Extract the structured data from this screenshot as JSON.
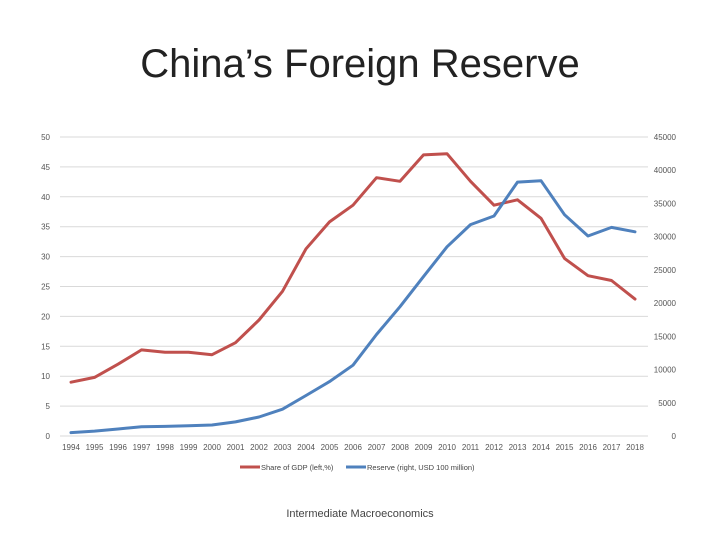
{
  "slide": {
    "title": "China’s Foreign Reserve",
    "footer": "Intermediate Macroeconomics"
  },
  "chart_data": {
    "type": "line",
    "x": [
      "1994",
      "1995",
      "1996",
      "1997",
      "1998",
      "1999",
      "2000",
      "2001",
      "2002",
      "2003",
      "2004",
      "2005",
      "2006",
      "2007",
      "2008",
      "2009",
      "2010",
      "2011",
      "2012",
      "2013",
      "2014",
      "2015",
      "2016",
      "2017",
      "2018"
    ],
    "y_left": {
      "ylim": [
        0,
        50
      ],
      "ticks": [
        "0",
        "5",
        "10",
        "15",
        "20",
        "25",
        "30",
        "35",
        "40",
        "45",
        "50"
      ]
    },
    "y_right": {
      "ylim": [
        0,
        45000
      ],
      "ticks": [
        "0",
        "5000",
        "10000",
        "15000",
        "20000",
        "25000",
        "30000",
        "35000",
        "40000",
        "45000"
      ]
    },
    "series": [
      {
        "name": "Share of GDP (left,%)",
        "axis": "left",
        "color": "#c0504d",
        "values": [
          9.0,
          9.8,
          12.0,
          14.4,
          14.0,
          14.0,
          13.6,
          15.6,
          19.4,
          24.2,
          31.3,
          35.8,
          38.6,
          43.2,
          42.6,
          47.0,
          47.2,
          42.6,
          38.6,
          39.5,
          36.4,
          29.7,
          26.8,
          26.0,
          22.9
        ]
      },
      {
        "name": "Reserve (right, USD 100 million)",
        "axis": "right",
        "color": "#4f81bd",
        "values": [
          516,
          736,
          1050,
          1399,
          1450,
          1547,
          1656,
          2122,
          2864,
          4033,
          6099,
          8189,
          10663,
          15282,
          19460,
          23992,
          28473,
          31811,
          33116,
          38213,
          38430,
          33304,
          30105,
          31399,
          30727
        ]
      }
    ],
    "grid": "horizontal",
    "legend": "bottom-center"
  }
}
